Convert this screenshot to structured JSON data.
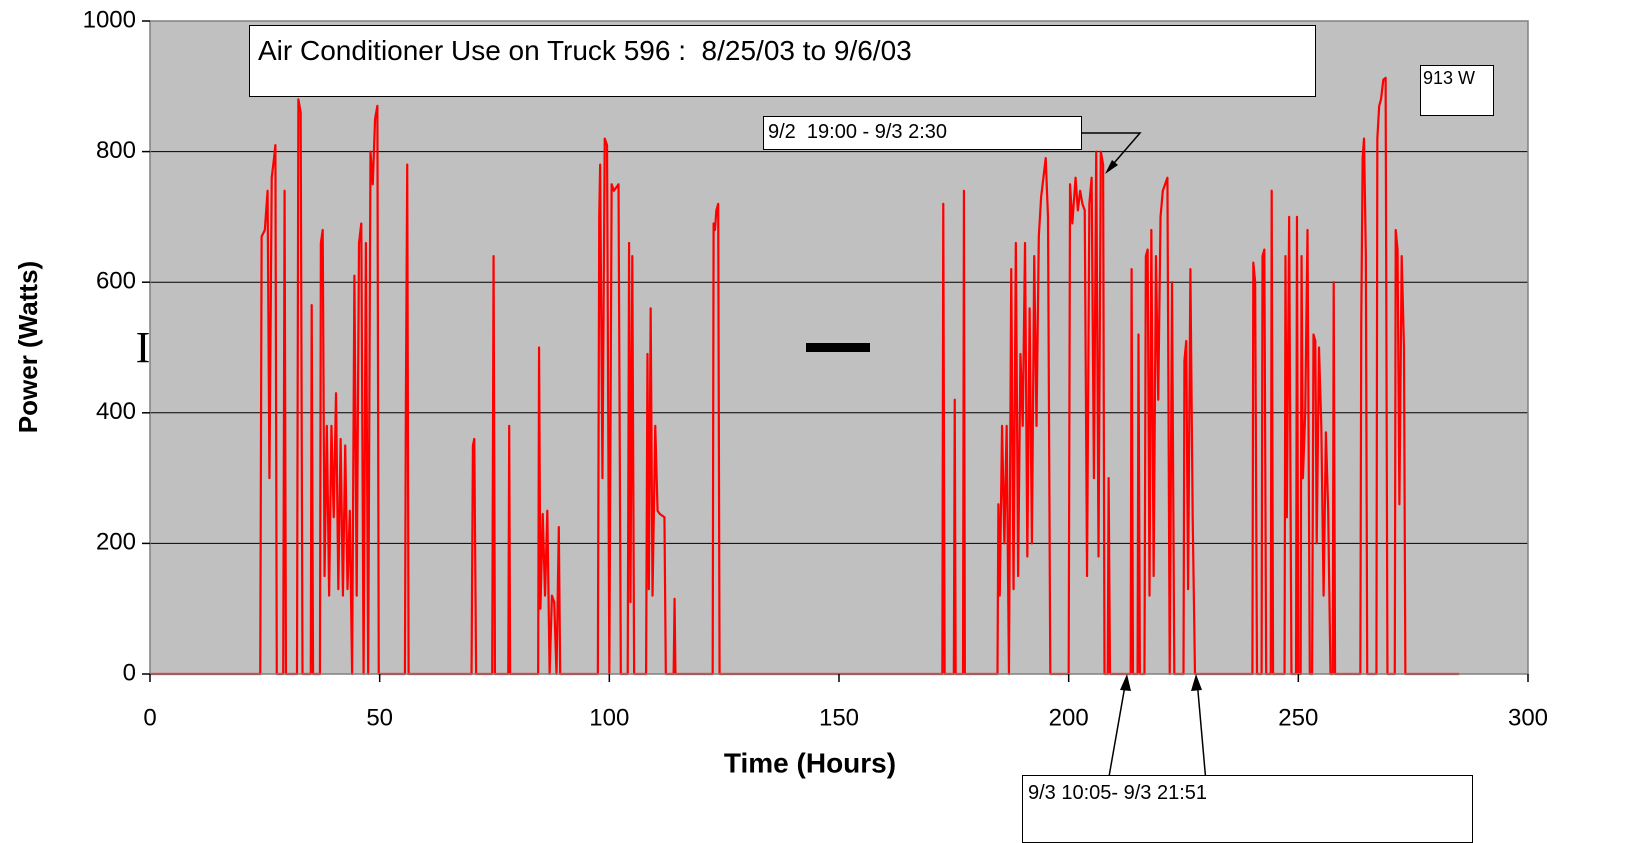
{
  "chart_data": {
    "type": "line",
    "title": "Air Conditioner Use on Truck 596 :  8/25/03 to 9/6/03",
    "xlabel": "Time (Hours)",
    "ylabel": "Power (Watts)",
    "xlim": [
      0,
      300
    ],
    "xticks": [
      0,
      50,
      100,
      150,
      200,
      250,
      300
    ],
    "ylim": [
      0,
      1000
    ],
    "yticks": [
      0,
      200,
      400,
      600,
      800,
      1000
    ],
    "grid": true,
    "annotations": [
      "9/2  19:00 - 9/3 2:30",
      "913 W",
      "9/3 10:05- 9/3 21:51",
      "I"
    ],
    "x": [
      0,
      24,
      24.3,
      25,
      25.6,
      26,
      26.5,
      27,
      27.3,
      27.6,
      29,
      29.3,
      29.6,
      32,
      32.3,
      32.8,
      33.2,
      35,
      35.2,
      35.5,
      37,
      37.2,
      37.6,
      38,
      38.5,
      39,
      39.5,
      40,
      40.5,
      41,
      41.5,
      42,
      42.5,
      43,
      43.5,
      44,
      44.5,
      45,
      45.5,
      46,
      46.5,
      47,
      47.5,
      48,
      48.5,
      49,
      49.5,
      49.8,
      55.5,
      55.7,
      56,
      56.3,
      70,
      70.3,
      70.6,
      71,
      74.5,
      74.8,
      75.1,
      78,
      78.2,
      78.4,
      84.5,
      84.7,
      85,
      85.5,
      86,
      86.5,
      87,
      87.5,
      88,
      88.5,
      89,
      89.3,
      97.5,
      97.8,
      98,
      98.5,
      99,
      99.5,
      100,
      100.5,
      101,
      102,
      102.5,
      104,
      104.3,
      104.6,
      105,
      105.4,
      108,
      108.3,
      108.6,
      109,
      109.4,
      110,
      110.5,
      111,
      112,
      112.3,
      114,
      114.2,
      114.4,
      122.5,
      122.7,
      123,
      123.3,
      123.7,
      124,
      172.5,
      172.7,
      173,
      175,
      175.2,
      175.4,
      177,
      177.2,
      177.4,
      184.5,
      184.7,
      185,
      185.5,
      186,
      186.5,
      187,
      187.5,
      188,
      188.5,
      189,
      189.5,
      190,
      190.5,
      191,
      191.5,
      192,
      192.5,
      193,
      193.5,
      194,
      194.5,
      195,
      195.5,
      196,
      200,
      200.3,
      200.8,
      201.5,
      202,
      202.5,
      203,
      203.5,
      204,
      204.5,
      205,
      205.5,
      206,
      206.5,
      207,
      207.5,
      207.8,
      208.5,
      208.7,
      209,
      213.5,
      213.7,
      214,
      215,
      215.2,
      215.5,
      216.5,
      216.8,
      217.2,
      217.6,
      218,
      218.5,
      219,
      219.5,
      220,
      220.5,
      221,
      221.5,
      222,
      222.5,
      223,
      225,
      225.2,
      225.6,
      226,
      226.5,
      227,
      227.5,
      240,
      240.2,
      240.6,
      241,
      242,
      242.2,
      242.6,
      243,
      244,
      244.2,
      244.5,
      247,
      247.2,
      247.5,
      248,
      248.5,
      249.5,
      249.7,
      250,
      250.5,
      250.7,
      251,
      251.5,
      252,
      252.5,
      253,
      253.3,
      253.7,
      254,
      254.5,
      255,
      255.5,
      256,
      256.5,
      257,
      257.5,
      257.7,
      258,
      263.5,
      263.7,
      264,
      264.3,
      264.7,
      265,
      267,
      267.2,
      267.6,
      268,
      268.5,
      269,
      269.4,
      271,
      271.2,
      271.6,
      272,
      272.5,
      273,
      273.3,
      285
    ],
    "series": [
      {
        "name": "Power",
        "color": "#ff0000",
        "values": [
          0,
          0,
          670,
          680,
          740,
          300,
          760,
          790,
          810,
          0,
          0,
          740,
          0,
          0,
          880,
          860,
          0,
          0,
          565,
          0,
          0,
          660,
          680,
          150,
          380,
          120,
          380,
          240,
          430,
          130,
          360,
          120,
          350,
          130,
          250,
          0,
          610,
          120,
          660,
          690,
          0,
          660,
          0,
          800,
          750,
          850,
          870,
          0,
          0,
          410,
          780,
          0,
          0,
          350,
          360,
          0,
          0,
          640,
          0,
          0,
          380,
          0,
          0,
          500,
          100,
          245,
          120,
          250,
          0,
          120,
          110,
          0,
          225,
          0,
          0,
          700,
          780,
          300,
          820,
          810,
          0,
          750,
          740,
          750,
          0,
          0,
          660,
          110,
          640,
          0,
          0,
          490,
          130,
          560,
          120,
          380,
          250,
          245,
          240,
          0,
          0,
          115,
          0,
          0,
          690,
          680,
          710,
          720,
          0,
          0,
          720,
          0,
          0,
          420,
          0,
          0,
          740,
          0,
          0,
          260,
          120,
          380,
          200,
          380,
          0,
          620,
          130,
          660,
          150,
          490,
          380,
          660,
          180,
          560,
          200,
          640,
          380,
          670,
          730,
          760,
          790,
          700,
          0,
          0,
          750,
          690,
          760,
          710,
          740,
          720,
          710,
          150,
          720,
          760,
          300,
          800,
          180,
          800,
          780,
          0,
          0,
          300,
          0,
          0,
          620,
          0,
          0,
          520,
          0,
          0,
          640,
          650,
          120,
          680,
          150,
          640,
          420,
          700,
          740,
          750,
          760,
          0,
          600,
          0,
          0,
          480,
          510,
          130,
          620,
          240,
          0,
          0,
          630,
          600,
          0,
          0,
          640,
          650,
          0,
          0,
          740,
          0,
          0,
          640,
          240,
          700,
          0,
          0,
          700,
          0,
          0,
          640,
          300,
          400,
          680,
          0,
          0,
          520,
          510,
          200,
          500,
          380,
          120,
          370,
          250,
          0,
          0,
          600,
          0,
          0,
          540,
          790,
          820,
          640,
          0,
          0,
          820,
          870,
          880,
          910,
          913,
          0,
          0,
          680,
          650,
          260,
          640,
          500,
          0,
          0
        ]
      }
    ]
  }
}
